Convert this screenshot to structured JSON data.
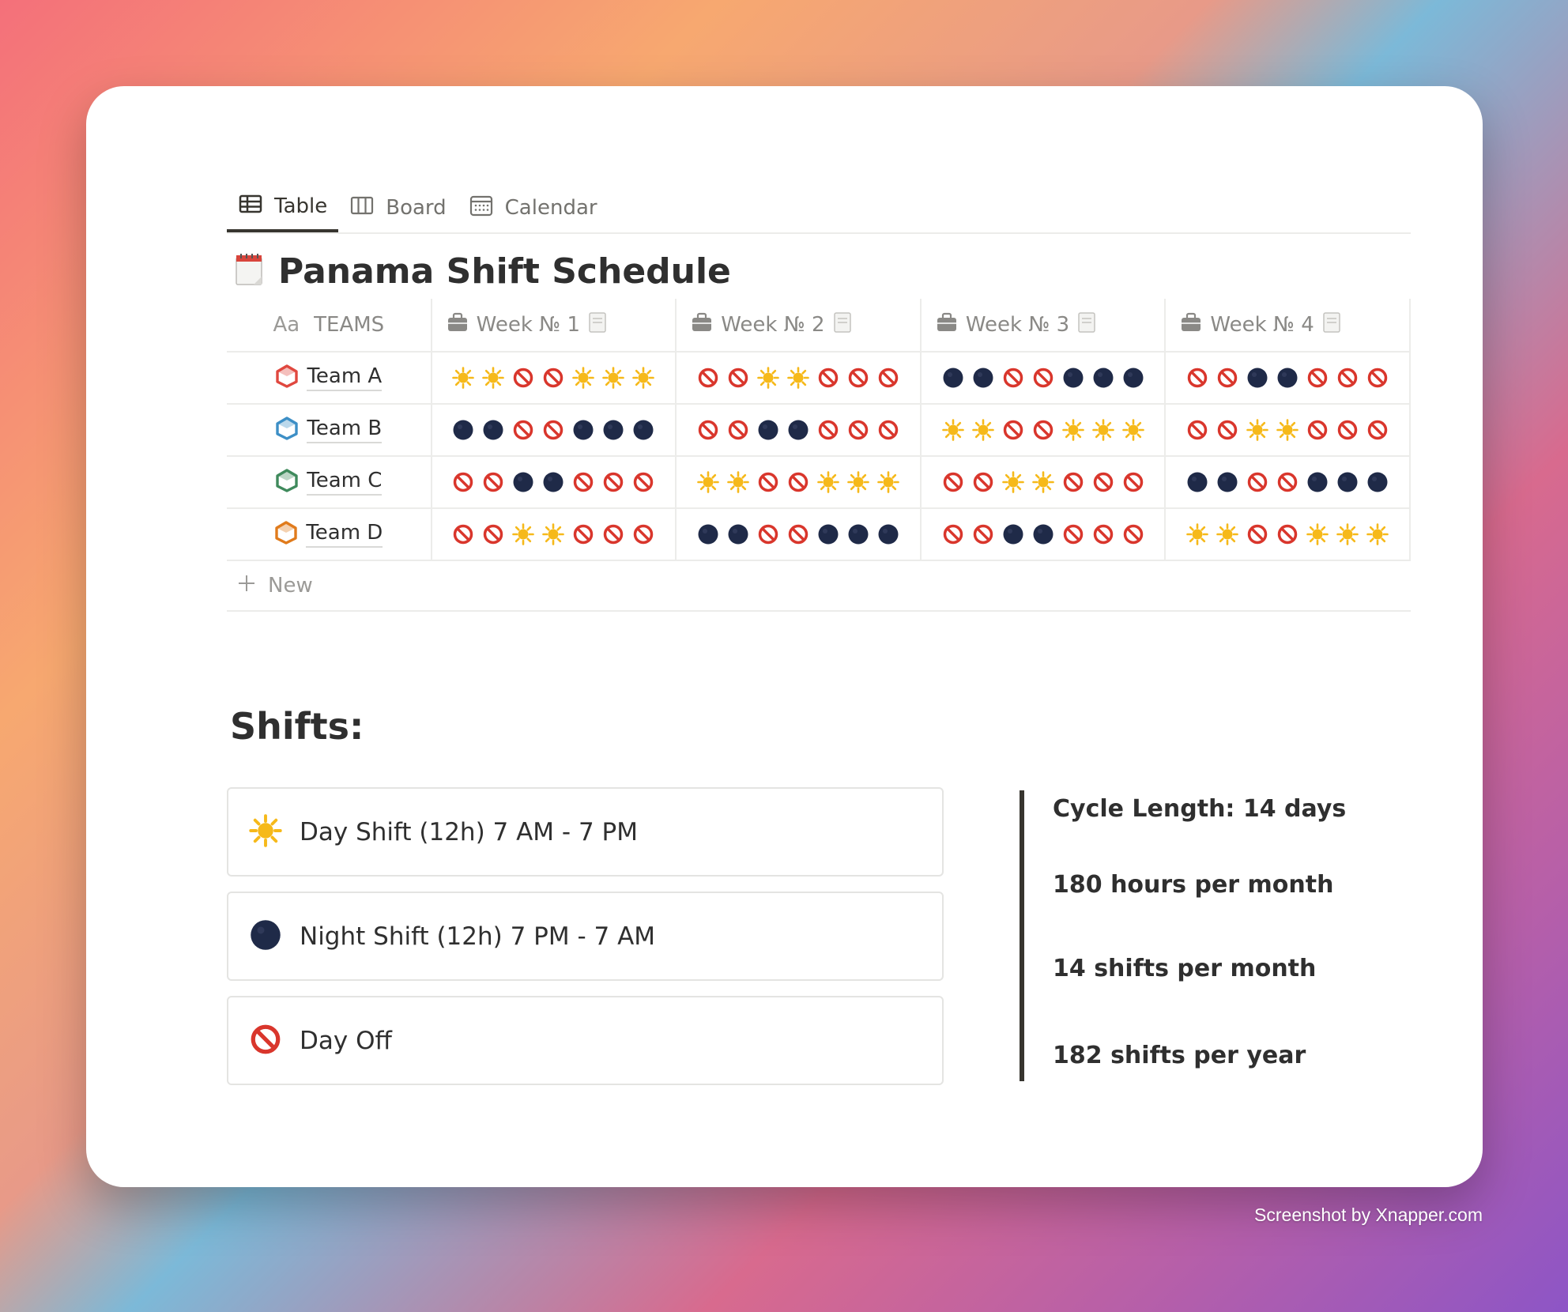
{
  "tabs": [
    {
      "label": "Table",
      "icon": "table-icon",
      "active": true
    },
    {
      "label": "Board",
      "icon": "board-icon",
      "active": false
    },
    {
      "label": "Calendar",
      "icon": "calendar-icon",
      "active": false
    }
  ],
  "title": "Panama Shift Schedule",
  "table": {
    "team_header": "TEAMS",
    "team_header_prefix": "Aa",
    "week_headers": [
      "Week № 1",
      "Week № 2",
      "Week № 3",
      "Week № 4"
    ],
    "rows": [
      {
        "team": "Team A",
        "icon_color": "#e0483f",
        "weeks": [
          [
            "day",
            "day",
            "off",
            "off",
            "day",
            "day",
            "day"
          ],
          [
            "off",
            "off",
            "day",
            "day",
            "off",
            "off",
            "off"
          ],
          [
            "night",
            "night",
            "off",
            "off",
            "night",
            "night",
            "night"
          ],
          [
            "off",
            "off",
            "night",
            "night",
            "off",
            "off",
            "off"
          ]
        ]
      },
      {
        "team": "Team B",
        "icon_color": "#3d8fc6",
        "weeks": [
          [
            "night",
            "night",
            "off",
            "off",
            "night",
            "night",
            "night"
          ],
          [
            "off",
            "off",
            "night",
            "night",
            "off",
            "off",
            "off"
          ],
          [
            "day",
            "day",
            "off",
            "off",
            "day",
            "day",
            "day"
          ],
          [
            "off",
            "off",
            "day",
            "day",
            "off",
            "off",
            "off"
          ]
        ]
      },
      {
        "team": "Team C",
        "icon_color": "#3f8a5c",
        "weeks": [
          [
            "off",
            "off",
            "night",
            "night",
            "off",
            "off",
            "off"
          ],
          [
            "day",
            "day",
            "off",
            "off",
            "day",
            "day",
            "day"
          ],
          [
            "off",
            "off",
            "day",
            "day",
            "off",
            "off",
            "off"
          ],
          [
            "night",
            "night",
            "off",
            "off",
            "night",
            "night",
            "night"
          ]
        ]
      },
      {
        "team": "Team D",
        "icon_color": "#e07b1c",
        "weeks": [
          [
            "off",
            "off",
            "day",
            "day",
            "off",
            "off",
            "off"
          ],
          [
            "night",
            "night",
            "off",
            "off",
            "night",
            "night",
            "night"
          ],
          [
            "off",
            "off",
            "night",
            "night",
            "off",
            "off",
            "off"
          ],
          [
            "day",
            "day",
            "off",
            "off",
            "day",
            "day",
            "day"
          ]
        ]
      }
    ],
    "new_label": "New"
  },
  "shifts_heading": "Shifts:",
  "legend": [
    {
      "symbol": "day",
      "label": "Day Shift (12h) 7 AM - 7 PM"
    },
    {
      "symbol": "night",
      "label": "Night Shift (12h) 7 PM - 7 AM"
    },
    {
      "symbol": "off",
      "label": "Day Off"
    }
  ],
  "stats": [
    "Cycle Length: 14 days",
    "180 hours per month",
    "14 shifts per month",
    "182 shifts per year"
  ],
  "watermark": "Screenshot by Xnapper.com",
  "colors": {
    "sun": "#f6b91a",
    "night": "#1f2a48",
    "off": "#d9362c"
  }
}
